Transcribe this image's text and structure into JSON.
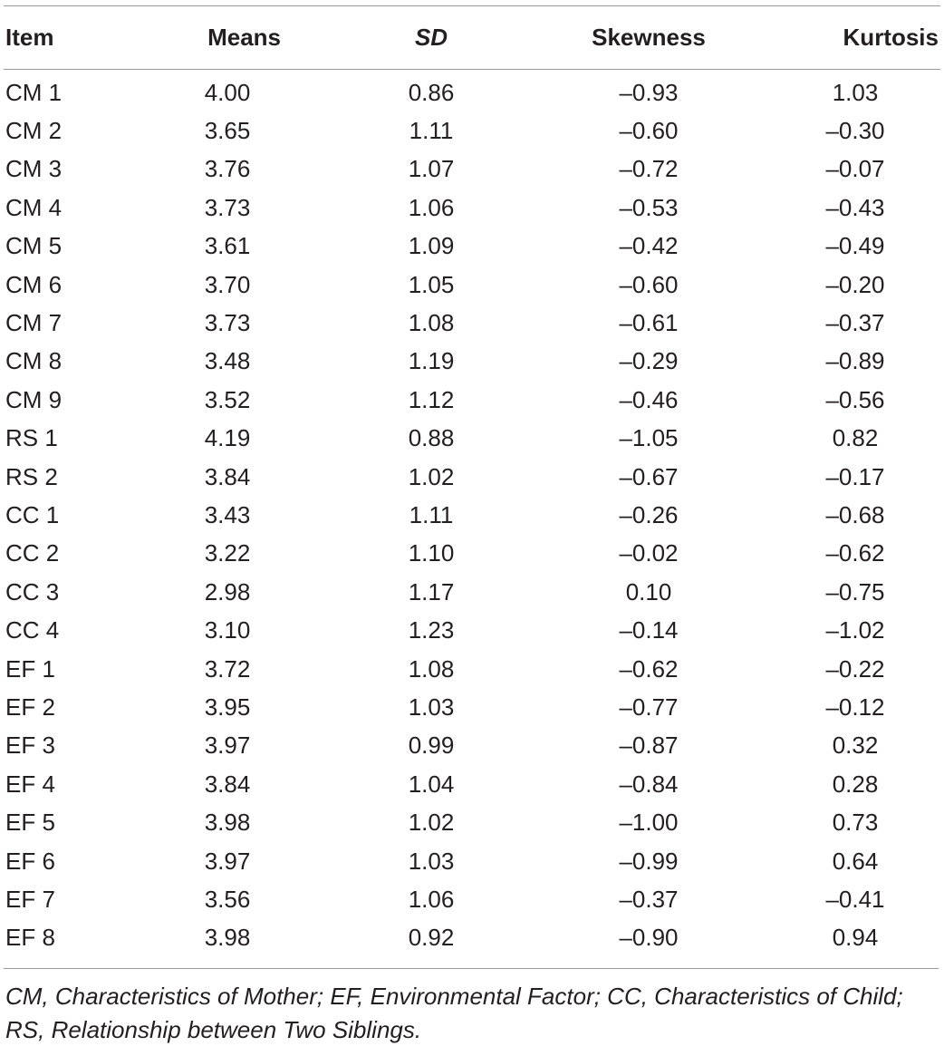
{
  "table": {
    "headers": {
      "item": "Item",
      "means": "Means",
      "sd": "SD",
      "skewness": "Skewness",
      "kurtosis": "Kurtosis"
    },
    "rows": [
      {
        "item": "CM 1",
        "means": "4.00",
        "sd": "0.86",
        "skewness": "–0.93",
        "kurtosis": "1.03"
      },
      {
        "item": "CM 2",
        "means": "3.65",
        "sd": "1.11",
        "skewness": "–0.60",
        "kurtosis": "–0.30"
      },
      {
        "item": "CM 3",
        "means": "3.76",
        "sd": "1.07",
        "skewness": "–0.72",
        "kurtosis": "–0.07"
      },
      {
        "item": "CM 4",
        "means": "3.73",
        "sd": "1.06",
        "skewness": "–0.53",
        "kurtosis": "–0.43"
      },
      {
        "item": "CM 5",
        "means": "3.61",
        "sd": "1.09",
        "skewness": "–0.42",
        "kurtosis": "–0.49"
      },
      {
        "item": "CM 6",
        "means": "3.70",
        "sd": "1.05",
        "skewness": "–0.60",
        "kurtosis": "–0.20"
      },
      {
        "item": "CM 7",
        "means": "3.73",
        "sd": "1.08",
        "skewness": "–0.61",
        "kurtosis": "–0.37"
      },
      {
        "item": "CM 8",
        "means": "3.48",
        "sd": "1.19",
        "skewness": "–0.29",
        "kurtosis": "–0.89"
      },
      {
        "item": "CM 9",
        "means": "3.52",
        "sd": "1.12",
        "skewness": "–0.46",
        "kurtosis": "–0.56"
      },
      {
        "item": "RS 1",
        "means": "4.19",
        "sd": "0.88",
        "skewness": "–1.05",
        "kurtosis": "0.82"
      },
      {
        "item": "RS 2",
        "means": "3.84",
        "sd": "1.02",
        "skewness": "–0.67",
        "kurtosis": "–0.17"
      },
      {
        "item": "CC 1",
        "means": "3.43",
        "sd": "1.11",
        "skewness": "–0.26",
        "kurtosis": "–0.68"
      },
      {
        "item": "CC 2",
        "means": "3.22",
        "sd": "1.10",
        "skewness": "–0.02",
        "kurtosis": "–0.62"
      },
      {
        "item": "CC 3",
        "means": "2.98",
        "sd": "1.17",
        "skewness": "0.10",
        "kurtosis": "–0.75"
      },
      {
        "item": "CC 4",
        "means": "3.10",
        "sd": "1.23",
        "skewness": "–0.14",
        "kurtosis": "–1.02"
      },
      {
        "item": "EF 1",
        "means": "3.72",
        "sd": "1.08",
        "skewness": "–0.62",
        "kurtosis": "–0.22"
      },
      {
        "item": "EF 2",
        "means": "3.95",
        "sd": "1.03",
        "skewness": "–0.77",
        "kurtosis": "–0.12"
      },
      {
        "item": "EF 3",
        "means": "3.97",
        "sd": "0.99",
        "skewness": "–0.87",
        "kurtosis": "0.32"
      },
      {
        "item": "EF 4",
        "means": "3.84",
        "sd": "1.04",
        "skewness": "–0.84",
        "kurtosis": "0.28"
      },
      {
        "item": "EF 5",
        "means": "3.98",
        "sd": "1.02",
        "skewness": "–1.00",
        "kurtosis": "0.73"
      },
      {
        "item": "EF 6",
        "means": "3.97",
        "sd": "1.03",
        "skewness": "–0.99",
        "kurtosis": "0.64"
      },
      {
        "item": "EF 7",
        "means": "3.56",
        "sd": "1.06",
        "skewness": "–0.37",
        "kurtosis": "–0.41"
      },
      {
        "item": "EF 8",
        "means": "3.98",
        "sd": "0.92",
        "skewness": "–0.90",
        "kurtosis": "0.94"
      }
    ]
  },
  "footnote": "CM, Characteristics of Mother; EF, Environmental Factor; CC, Characteristics of Child; RS, Relationship between Two Siblings."
}
